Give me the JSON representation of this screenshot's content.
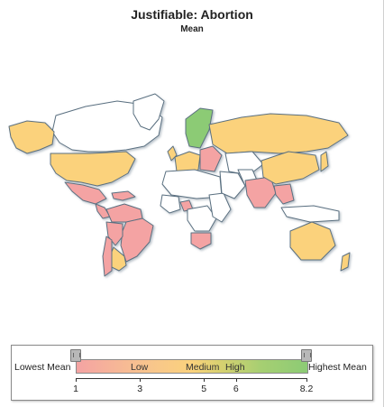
{
  "title": "Justifiable: Abortion",
  "subtitle": "Mean",
  "colors": {
    "low": "#f4a3a3",
    "medium": "#fbd27c",
    "high": "#8ccb75",
    "no_data": "#ffffff",
    "border": "#5a6f80"
  },
  "legend": {
    "lowest_label": "Lowest Mean",
    "highest_label": "Highest Mean",
    "bands": [
      {
        "label": "Low"
      },
      {
        "label": "Medium"
      },
      {
        "label": "High"
      }
    ],
    "ticks": [
      "1",
      "3",
      "5",
      "6",
      "8.2"
    ],
    "range": [
      1,
      8.2
    ]
  },
  "map_data": {
    "regions": [
      {
        "name": "canada",
        "level": "none"
      },
      {
        "name": "alaska",
        "level": "medium"
      },
      {
        "name": "usa",
        "level": "medium"
      },
      {
        "name": "mexico",
        "level": "low"
      },
      {
        "name": "central-america",
        "level": "low"
      },
      {
        "name": "caribbean",
        "level": "low"
      },
      {
        "name": "south-america-north",
        "level": "low"
      },
      {
        "name": "brazil",
        "level": "low"
      },
      {
        "name": "peru",
        "level": "low"
      },
      {
        "name": "argentina",
        "level": "medium"
      },
      {
        "name": "chile",
        "level": "low"
      },
      {
        "name": "greenland",
        "level": "none"
      },
      {
        "name": "scandinavia",
        "level": "high"
      },
      {
        "name": "uk",
        "level": "medium"
      },
      {
        "name": "western-europe",
        "level": "medium"
      },
      {
        "name": "eastern-europe",
        "level": "low"
      },
      {
        "name": "russia",
        "level": "medium"
      },
      {
        "name": "kazakhstan",
        "level": "none"
      },
      {
        "name": "north-africa",
        "level": "none"
      },
      {
        "name": "west-africa",
        "level": "none"
      },
      {
        "name": "ghana-nigeria",
        "level": "low"
      },
      {
        "name": "central-africa",
        "level": "none"
      },
      {
        "name": "east-africa",
        "level": "none"
      },
      {
        "name": "south-africa",
        "level": "low"
      },
      {
        "name": "middle-east",
        "level": "none"
      },
      {
        "name": "iran",
        "level": "none"
      },
      {
        "name": "india",
        "level": "low"
      },
      {
        "name": "china",
        "level": "medium"
      },
      {
        "name": "japan",
        "level": "medium"
      },
      {
        "name": "southeast-asia",
        "level": "low"
      },
      {
        "name": "indonesia",
        "level": "none"
      },
      {
        "name": "australia",
        "level": "medium"
      },
      {
        "name": "new-zealand",
        "level": "medium"
      }
    ]
  }
}
